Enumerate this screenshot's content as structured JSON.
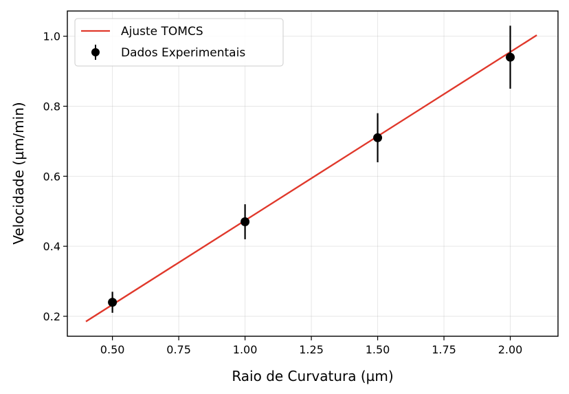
{
  "chart_data": {
    "type": "line",
    "title": "",
    "xlabel": "Raio de Curvatura (µm)",
    "ylabel": "Velocidade (µm/min)",
    "xlim": [
      0.33,
      2.18
    ],
    "ylim": [
      0.143,
      1.072
    ],
    "xticks": [
      0.5,
      0.75,
      1.0,
      1.25,
      1.5,
      1.75,
      2.0
    ],
    "xtick_labels": [
      "0.50",
      "0.75",
      "1.00",
      "1.25",
      "1.50",
      "1.75",
      "2.00"
    ],
    "yticks": [
      0.2,
      0.4,
      0.6,
      0.8,
      1.0
    ],
    "ytick_labels": [
      "0.2",
      "0.4",
      "0.6",
      "0.8",
      "1.0"
    ],
    "grid": true,
    "legend_position": "top-left",
    "series": [
      {
        "name": "Ajuste TOMCS",
        "kind": "line",
        "color": "#e0382b",
        "x": [
          0.4,
          2.1
        ],
        "y": [
          0.185,
          1.003
        ]
      },
      {
        "name": "Dados Experimentais",
        "kind": "errorbar",
        "color": "#000000",
        "x": [
          0.5,
          1.0,
          1.5,
          2.0
        ],
        "y": [
          0.24,
          0.47,
          0.71,
          0.94
        ],
        "yerr": [
          0.03,
          0.05,
          0.07,
          0.09
        ]
      }
    ]
  }
}
